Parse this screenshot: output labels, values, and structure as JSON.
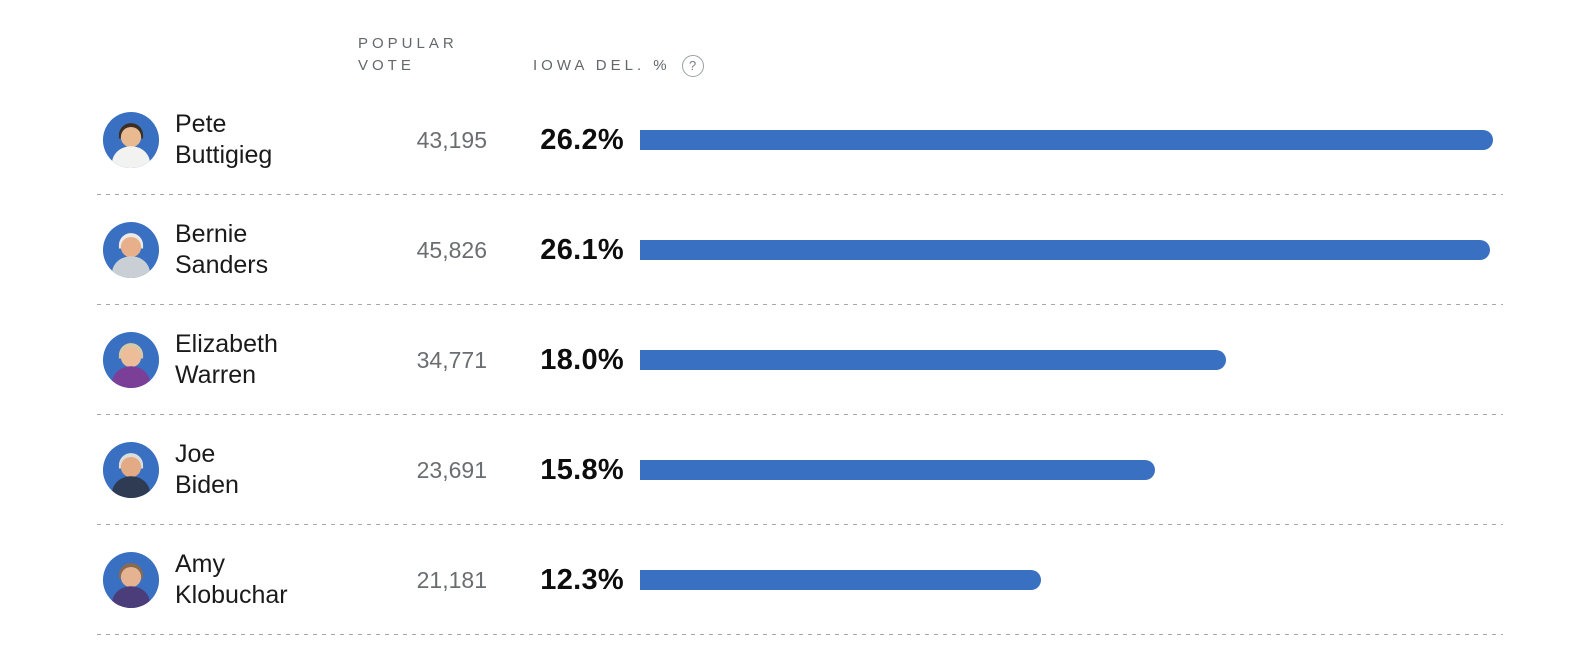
{
  "colors": {
    "bar_blue": "#3A70C2",
    "avatar_background_blue": "#3A70C2",
    "name_text": "#1A1A1A",
    "vote_text": "#6B6E71",
    "pct_text": "#0D0D0D",
    "header_text": "#64676B",
    "separator_gray": "#A8A8A8",
    "help_icon_gray": "#9AA0A4"
  },
  "table": {
    "headers": {
      "popular_vote": "POPULAR VOTE",
      "iowa_del": "IOWA DEL. %",
      "help_icon": "?"
    },
    "rows": [
      {
        "first_name": "Pete",
        "last_name": "Buttigieg",
        "popular_vote": "43,195",
        "iowa_del_pct": "26.2%",
        "iowa_del_value": 26.2,
        "avatar": {
          "bg": "#3A70C2",
          "skin": "#E9BA90",
          "hair": "#3B2F24",
          "shirt": "#F2F2F0"
        }
      },
      {
        "first_name": "Bernie",
        "last_name": "Sanders",
        "popular_vote": "45,826",
        "iowa_del_pct": "26.1%",
        "iowa_del_value": 26.1,
        "avatar": {
          "bg": "#3A70C2",
          "skin": "#E7B08A",
          "hair": "#EDEAE6",
          "shirt": "#C9CFD4"
        }
      },
      {
        "first_name": "Elizabeth",
        "last_name": "Warren",
        "popular_vote": "34,771",
        "iowa_del_pct": "18.0%",
        "iowa_del_value": 18.0,
        "avatar": {
          "bg": "#3A70C2",
          "skin": "#EDBD9A",
          "hair": "#D8C9A6",
          "shirt": "#7B3F98"
        }
      },
      {
        "first_name": "Joe",
        "last_name": "Biden",
        "popular_vote": "23,691",
        "iowa_del_pct": "15.8%",
        "iowa_del_value": 15.8,
        "avatar": {
          "bg": "#3A70C2",
          "skin": "#E2AB86",
          "hair": "#DDDDD9",
          "shirt": "#2E3B52"
        }
      },
      {
        "first_name": "Amy",
        "last_name": "Klobuchar",
        "popular_vote": "21,181",
        "iowa_del_pct": "12.3%",
        "iowa_del_value": 12.3,
        "avatar": {
          "bg": "#3A70C2",
          "skin": "#E6B392",
          "hair": "#8A6A4F",
          "shirt": "#4A3D7A"
        }
      }
    ]
  },
  "chart_data": {
    "type": "bar",
    "orientation": "horizontal",
    "categories": [
      "Pete Buttigieg",
      "Bernie Sanders",
      "Elizabeth Warren",
      "Joe Biden",
      "Amy Klobuchar"
    ],
    "series": [
      {
        "name": "Popular vote",
        "values": [
          43195,
          45826,
          34771,
          23691,
          21181
        ]
      },
      {
        "name": "Iowa del. %",
        "values": [
          26.2,
          26.1,
          18.0,
          15.8,
          12.3
        ]
      }
    ],
    "xlabel": "IOWA DEL. %",
    "xlim": [
      0,
      26.5
    ],
    "bar_color": "#3A70C2",
    "grid": false,
    "legend_position": "none"
  }
}
